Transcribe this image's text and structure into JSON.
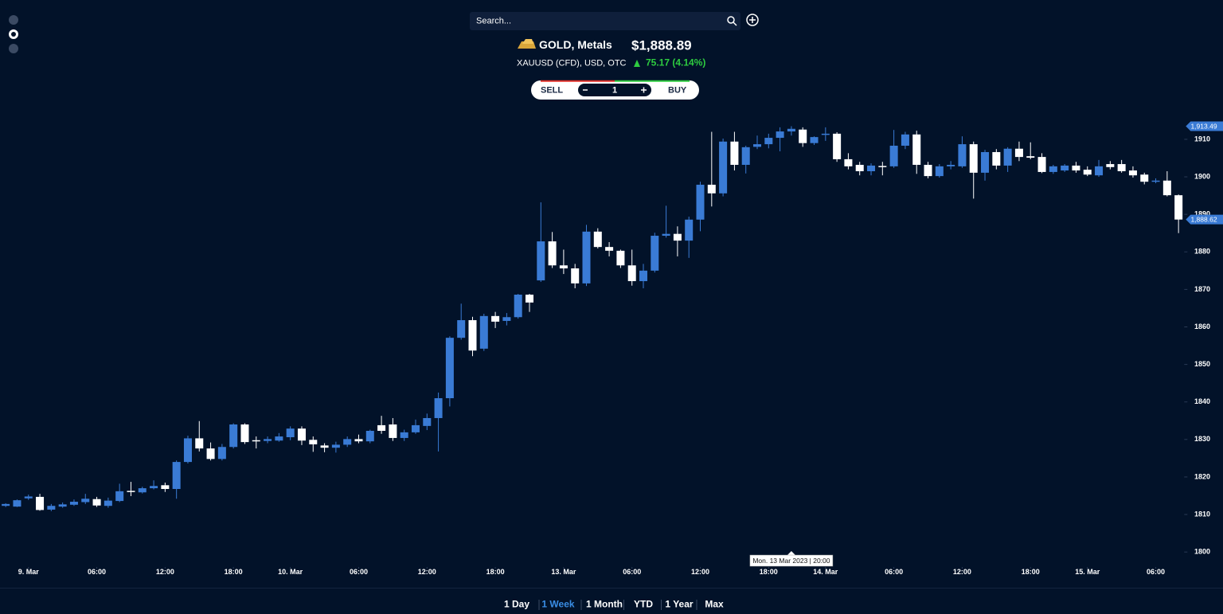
{
  "search": {
    "placeholder": "Search..."
  },
  "instrument": {
    "name": "GOLD, Metals",
    "price": "$1,888.89",
    "symbol": "XAUUSD (CFD), USD, OTC",
    "change": "75.17 (4.14%)"
  },
  "trade": {
    "sell": "SELL",
    "quantity": "1",
    "buy": "BUY"
  },
  "ranges": {
    "items": [
      "1 Day",
      "1 Week",
      "1 Month",
      "YTD",
      "1 Year",
      "Max"
    ],
    "active": 1
  },
  "chart_data": {
    "type": "candlestick",
    "categories": [
      null,
      null,
      null,
      null,
      null,
      null,
      null,
      null,
      null,
      null,
      null,
      null,
      null,
      null,
      null,
      null,
      null,
      null,
      null,
      null,
      null,
      null,
      null,
      null,
      null,
      null,
      null,
      null,
      null,
      null,
      null,
      null,
      null,
      null,
      null,
      null,
      null,
      null,
      null,
      null,
      null,
      null,
      null,
      null,
      null,
      null,
      null,
      null,
      null,
      null,
      null,
      null,
      null,
      null,
      null,
      null,
      null,
      null,
      null,
      null,
      null,
      null,
      null,
      null,
      null,
      null,
      null,
      null,
      null,
      null,
      null,
      null,
      null,
      null,
      null,
      null,
      null,
      null,
      null,
      null,
      null,
      null,
      null,
      null,
      null,
      null,
      null,
      null,
      null,
      null,
      null,
      null,
      null,
      null,
      null,
      null,
      null,
      null,
      null,
      null,
      null,
      null,
      null,
      null
    ],
    "open": [
      1812.3,
      1812.1,
      1814.3,
      1814.7,
      1811.3,
      1812.1,
      1812.6,
      1813.3,
      1814.1,
      1812.3,
      1813.6,
      1816.3,
      1815.9,
      1817,
      1817.8,
      1816.8,
      1824,
      1830.3,
      1827.6,
      1824.8,
      1828,
      1834,
      1829.8,
      1829.6,
      1829.7,
      1830.6,
      1832.9,
      1829.9,
      1828.4,
      1827.8,
      1828.6,
      1830.1,
      1829.5,
      1833.8,
      1834,
      1830.4,
      1831.9,
      1833.6,
      1835.7,
      1841,
      1857.1,
      1861.8,
      1854.2,
      1862.9,
      1861.6,
      1862.6,
      1868.6,
      1872.4,
      1882.8,
      1876.4,
      1875.6,
      1871.6,
      1885.4,
      1881.3,
      1880.3,
      1876.4,
      1872.2,
      1875,
      1884.3,
      1884.8,
      1883,
      1888.6,
      1897.9,
      1895.6,
      1909.4,
      1903.2,
      1908,
      1908.7,
      1910.4,
      1912.1,
      1912.6,
      1909,
      1911.3,
      1911.5,
      1904.7,
      1903.2,
      1901.5,
      1902.9,
      1902.8,
      1908.3,
      1911.3,
      1903.2,
      1900.2,
      1902.8,
      1902.8,
      1908.7,
      1901.1,
      1906.6,
      1903,
      1907.5,
      1905.5,
      1905.3,
      1901.3,
      1901.7,
      1903,
      1901.9,
      1900.4,
      1903.4,
      1903.4,
      1901.7,
      1900.6,
      1898.8,
      1899,
      1895.1
    ],
    "high": [
      1813,
      1814,
      1815.3,
      1815.5,
      1812.8,
      1813.2,
      1814,
      1815.5,
      1814.7,
      1814.5,
      1818.2,
      1818.7,
      1817.4,
      1819.1,
      1818.5,
      1824.4,
      1831,
      1834.9,
      1829.2,
      1828.8,
      1834.3,
      1834.3,
      1830.8,
      1830.8,
      1831.7,
      1833.5,
      1833.5,
      1830.8,
      1829,
      1829.4,
      1830.8,
      1831.3,
      1832.6,
      1836.3,
      1835.7,
      1832.6,
      1835.3,
      1836.9,
      1842.5,
      1857.5,
      1866.2,
      1862.7,
      1863.5,
      1864,
      1863.7,
      1868.8,
      1868.8,
      1893.2,
      1885.3,
      1880.6,
      1876.8,
      1887.2,
      1886.3,
      1882.6,
      1880.6,
      1880.6,
      1876.8,
      1885.1,
      1892.3,
      1886.8,
      1889.4,
      1898.7,
      1912,
      1910.2,
      1912,
      1908.3,
      1911,
      1911.5,
      1913.2,
      1913.49,
      1913.2,
      1910.8,
      1913.2,
      1911.9,
      1906.3,
      1904,
      1903.6,
      1904,
      1912.5,
      1912,
      1912.3,
      1904,
      1903.4,
      1904.2,
      1910.8,
      1909.4,
      1907.2,
      1907.4,
      1907.9,
      1909.4,
      1909.2,
      1906.3,
      1903.2,
      1903.4,
      1904,
      1902.8,
      1904.5,
      1904.2,
      1904.5,
      1902.8,
      1901.1,
      1899.6,
      1901.5,
      1895.3
    ],
    "low": [
      1812,
      1812,
      1813.9,
      1811,
      1810.9,
      1811.8,
      1812.3,
      1812.8,
      1812,
      1811.8,
      1813.3,
      1814.9,
      1815.6,
      1816.7,
      1816,
      1814.2,
      1823.6,
      1826.8,
      1824.4,
      1824.4,
      1827.6,
      1828.8,
      1827.6,
      1829,
      1829.4,
      1829.8,
      1828.5,
      1826.7,
      1826.6,
      1826.5,
      1828,
      1829,
      1829,
      1831.5,
      1829.6,
      1829.6,
      1831.5,
      1832.5,
      1826.8,
      1838.8,
      1856.6,
      1852.2,
      1853.6,
      1859.7,
      1860.4,
      1862.2,
      1864,
      1872,
      1875.7,
      1874.1,
      1870.3,
      1870.9,
      1880.9,
      1878.8,
      1875.7,
      1871,
      1870.3,
      1874.5,
      1883.8,
      1878.8,
      1878.4,
      1885.5,
      1892.1,
      1894.8,
      1901.7,
      1900.9,
      1907.4,
      1907.6,
      1906.8,
      1911,
      1908,
      1908.5,
      1909.6,
      1904,
      1902,
      1900.4,
      1900.4,
      1900.4,
      1902.4,
      1907.4,
      1900.8,
      1899.6,
      1899.8,
      1902,
      1902.4,
      1894.2,
      1899,
      1902,
      1901.3,
      1904.2,
      1904.7,
      1901,
      1900.8,
      1901.3,
      1901.1,
      1900.2,
      1900,
      1902,
      1901.1,
      1899.8,
      1898,
      1898.3,
      1894.8,
      1885
    ],
    "close": [
      1812.8,
      1813.8,
      1814.8,
      1811.2,
      1812.3,
      1812.7,
      1813.4,
      1814.2,
      1812.4,
      1813.7,
      1816.2,
      1816,
      1817,
      1817.6,
      1816.8,
      1824,
      1830.3,
      1827.6,
      1824.8,
      1828,
      1834,
      1829.3,
      1829.6,
      1830.1,
      1830.8,
      1832.9,
      1829.7,
      1828.7,
      1827.8,
      1828.6,
      1830.1,
      1829.5,
      1832.3,
      1832.3,
      1830.4,
      1831.9,
      1833.8,
      1835.7,
      1841,
      1857.1,
      1861.8,
      1853.7,
      1862.9,
      1861.4,
      1862.6,
      1868.6,
      1866.5,
      1882.8,
      1876.4,
      1875.6,
      1871.6,
      1885.4,
      1881.3,
      1880.3,
      1876.4,
      1872.2,
      1875,
      1884.3,
      1884.8,
      1883,
      1888.6,
      1897.9,
      1895.6,
      1909.4,
      1903.2,
      1907.9,
      1908.7,
      1910.4,
      1912.1,
      1912.8,
      1909,
      1910.6,
      1911.5,
      1904.7,
      1902.8,
      1901.5,
      1903,
      1902.7,
      1908.3,
      1911.3,
      1903.2,
      1900.2,
      1902.8,
      1903.2,
      1908.7,
      1901.1,
      1906.6,
      1903,
      1907.5,
      1905.3,
      1905.1,
      1901.3,
      1902.8,
      1903,
      1901.7,
      1900.6,
      1902.8,
      1902.6,
      1901.5,
      1900.4,
      1898.7,
      1899,
      1895.1,
      1888.62
    ],
    "up_color": "#3a7bd5",
    "down_color": "#ffffff",
    "xlim": [
      -0.5,
      103.5
    ],
    "xticks": [
      {
        "value": 2,
        "label": "9. Mar"
      },
      {
        "value": 8,
        "label": "06:00"
      },
      {
        "value": 14,
        "label": "12:00"
      },
      {
        "value": 20,
        "label": "18:00"
      },
      {
        "value": 25,
        "label": "10. Mar"
      },
      {
        "value": 31,
        "label": "06:00"
      },
      {
        "value": 37,
        "label": "12:00"
      },
      {
        "value": 43,
        "label": "18:00"
      },
      {
        "value": 49,
        "label": "13. Mar"
      },
      {
        "value": 55,
        "label": "06:00"
      },
      {
        "value": 61,
        "label": "12:00"
      },
      {
        "value": 67,
        "label": "18:00"
      },
      {
        "value": 72,
        "label": "14. Mar"
      },
      {
        "value": 78,
        "label": "06:00"
      },
      {
        "value": 84,
        "label": "12:00"
      },
      {
        "value": 90,
        "label": "18:00"
      },
      {
        "value": 95,
        "label": "15. Mar"
      },
      {
        "value": 101,
        "label": "06:00"
      }
    ],
    "ylim": [
      1796,
      1924
    ],
    "yticks": [
      1800,
      1810,
      1820,
      1830,
      1840,
      1850,
      1860,
      1870,
      1880,
      1890,
      1900,
      1910
    ],
    "grid": false,
    "price_markers": [
      {
        "value": 1913.49,
        "label": "1,913.49"
      },
      {
        "value": 1888.62,
        "label": "1,888.62"
      }
    ],
    "annotations": [
      {
        "x": 69,
        "text": "Mon. 13 Mar 2023 | 20:00"
      }
    ]
  }
}
